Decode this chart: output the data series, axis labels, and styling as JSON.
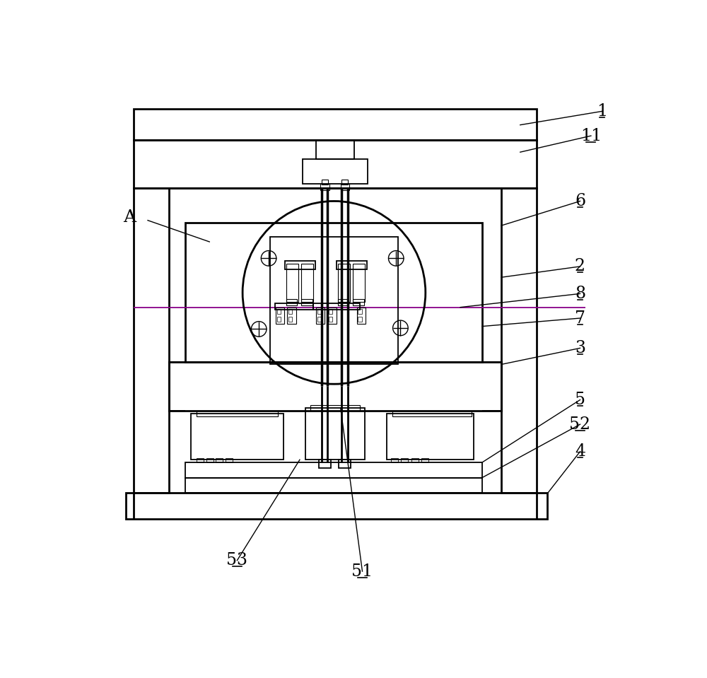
{
  "bg_color": "#ffffff",
  "lw": 1.3,
  "lw2": 2.0,
  "lw3": 0.8,
  "fig_width": 10.0,
  "fig_height": 9.59,
  "dpi": 100,
  "parting_color": "#880088"
}
